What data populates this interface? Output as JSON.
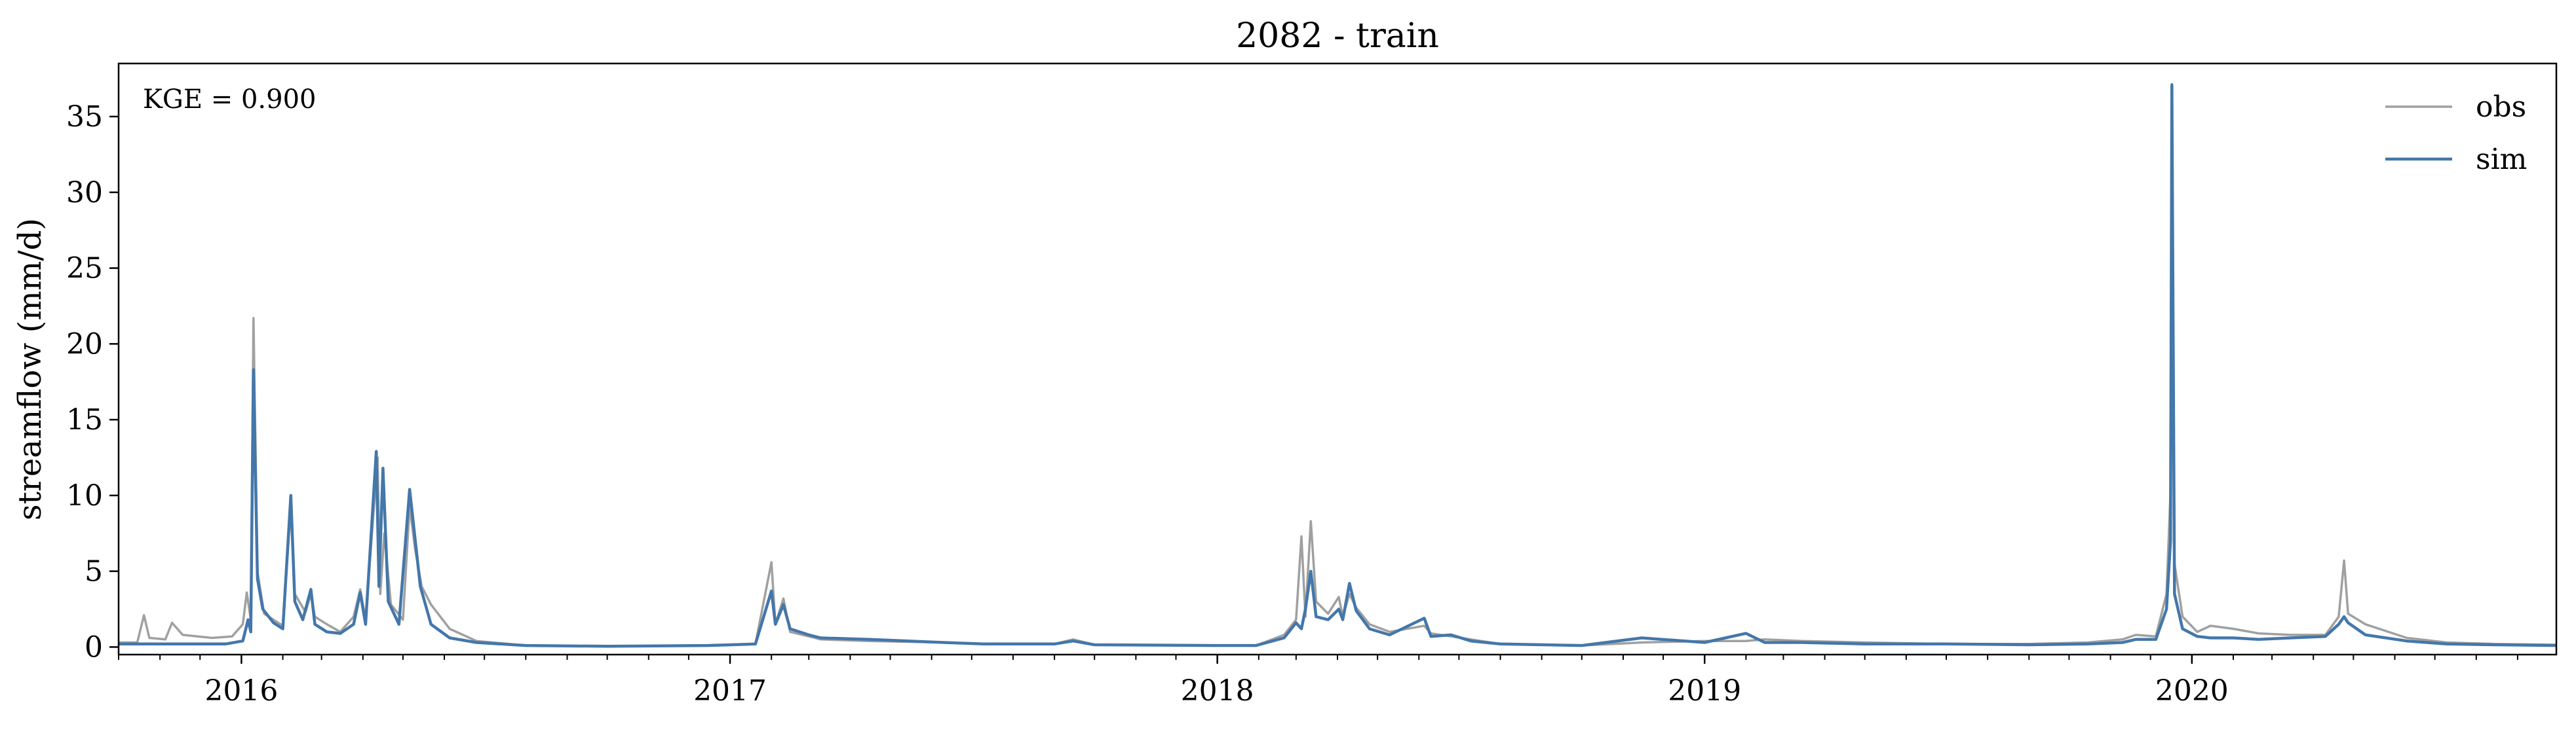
{
  "chart_data": {
    "type": "line",
    "title": "2082 - train",
    "xlabel": "",
    "ylabel": "streamflow (mm/d)",
    "annotation": "KGE = 0.900",
    "xlim": [
      "2015-10-01",
      "2020-09-30"
    ],
    "ylim": [
      -0.5,
      38.5
    ],
    "x_ticks": [
      "2016",
      "2017",
      "2018",
      "2019",
      "2020"
    ],
    "y_ticks": [
      "0",
      "5",
      "10",
      "15",
      "20",
      "25",
      "30",
      "35"
    ],
    "legend_position": "top-right",
    "grid": false,
    "colors": {
      "obs": "#a0a0a0",
      "sim": "#4477aa"
    },
    "series": [
      {
        "name": "obs",
        "color": "#a0a0a0",
        "points": [
          [
            "2015-10-01",
            0.3
          ],
          [
            "2015-10-15",
            0.3
          ],
          [
            "2015-10-20",
            2.1
          ],
          [
            "2015-10-24",
            0.6
          ],
          [
            "2015-11-05",
            0.5
          ],
          [
            "2015-11-10",
            1.6
          ],
          [
            "2015-11-18",
            0.8
          ],
          [
            "2015-12-10",
            0.6
          ],
          [
            "2015-12-25",
            0.7
          ],
          [
            "2016-01-02",
            1.5
          ],
          [
            "2016-01-05",
            3.6
          ],
          [
            "2016-01-08",
            1.8
          ],
          [
            "2016-01-10",
            21.7
          ],
          [
            "2016-01-13",
            5.0
          ],
          [
            "2016-01-18",
            2.2
          ],
          [
            "2016-02-01",
            1.4
          ],
          [
            "2016-02-07",
            9.2
          ],
          [
            "2016-02-10",
            3.5
          ],
          [
            "2016-02-18",
            2.3
          ],
          [
            "2016-02-22",
            3.5
          ],
          [
            "2016-02-25",
            2.0
          ],
          [
            "2016-03-05",
            1.5
          ],
          [
            "2016-03-15",
            1.0
          ],
          [
            "2016-03-25",
            2.0
          ],
          [
            "2016-03-30",
            3.8
          ],
          [
            "2016-04-03",
            1.8
          ],
          [
            "2016-04-12",
            12.5
          ],
          [
            "2016-04-14",
            3.5
          ],
          [
            "2016-04-17",
            7.5
          ],
          [
            "2016-04-22",
            2.8
          ],
          [
            "2016-05-01",
            1.8
          ],
          [
            "2016-05-06",
            9.3
          ],
          [
            "2016-05-10",
            6.5
          ],
          [
            "2016-05-15",
            4.0
          ],
          [
            "2016-05-22",
            2.8
          ],
          [
            "2016-06-05",
            1.2
          ],
          [
            "2016-06-25",
            0.4
          ],
          [
            "2016-08-01",
            0.1
          ],
          [
            "2016-10-01",
            0.05
          ],
          [
            "2016-12-15",
            0.1
          ],
          [
            "2017-01-20",
            0.2
          ],
          [
            "2017-02-01",
            5.6
          ],
          [
            "2017-02-04",
            1.5
          ],
          [
            "2017-02-10",
            3.2
          ],
          [
            "2017-02-15",
            1.0
          ],
          [
            "2017-03-01",
            0.7
          ],
          [
            "2017-03-10",
            0.5
          ],
          [
            "2017-04-15",
            0.4
          ],
          [
            "2017-06-10",
            0.3
          ],
          [
            "2017-07-10",
            0.2
          ],
          [
            "2017-09-01",
            0.2
          ],
          [
            "2017-09-15",
            0.5
          ],
          [
            "2017-10-01",
            0.15
          ],
          [
            "2017-12-31",
            0.1
          ],
          [
            "2018-01-30",
            0.1
          ],
          [
            "2018-02-20",
            0.8
          ],
          [
            "2018-03-01",
            1.8
          ],
          [
            "2018-03-05",
            7.3
          ],
          [
            "2018-03-08",
            2.0
          ],
          [
            "2018-03-12",
            8.3
          ],
          [
            "2018-03-16",
            3.0
          ],
          [
            "2018-03-25",
            2.2
          ],
          [
            "2018-04-02",
            3.3
          ],
          [
            "2018-04-05",
            2.0
          ],
          [
            "2018-04-10",
            3.5
          ],
          [
            "2018-04-15",
            2.6
          ],
          [
            "2018-04-25",
            1.5
          ],
          [
            "2018-05-10",
            1.0
          ],
          [
            "2018-06-05",
            1.4
          ],
          [
            "2018-06-10",
            0.9
          ],
          [
            "2018-06-25",
            0.7
          ],
          [
            "2018-07-10",
            0.5
          ],
          [
            "2018-08-01",
            0.2
          ],
          [
            "2018-10-01",
            0.1
          ],
          [
            "2018-11-15",
            0.3
          ],
          [
            "2019-01-01",
            0.4
          ],
          [
            "2019-02-01",
            0.4
          ],
          [
            "2019-02-15",
            0.5
          ],
          [
            "2019-03-15",
            0.4
          ],
          [
            "2019-05-01",
            0.3
          ],
          [
            "2019-07-01",
            0.2
          ],
          [
            "2019-09-01",
            0.2
          ],
          [
            "2019-10-15",
            0.3
          ],
          [
            "2019-11-10",
            0.5
          ],
          [
            "2019-11-20",
            0.8
          ],
          [
            "2019-12-05",
            0.7
          ],
          [
            "2019-12-13",
            3.5
          ],
          [
            "2019-12-16",
            10.2
          ],
          [
            "2019-12-17",
            37.0
          ],
          [
            "2019-12-19",
            5.5
          ],
          [
            "2019-12-25",
            2.0
          ],
          [
            "2020-01-05",
            1.0
          ],
          [
            "2020-01-15",
            1.4
          ],
          [
            "2020-02-01",
            1.2
          ],
          [
            "2020-02-20",
            0.9
          ],
          [
            "2020-03-15",
            0.8
          ],
          [
            "2020-04-10",
            0.8
          ],
          [
            "2020-04-20",
            2.0
          ],
          [
            "2020-04-24",
            5.7
          ],
          [
            "2020-04-27",
            2.2
          ],
          [
            "2020-05-10",
            1.5
          ],
          [
            "2020-06-10",
            0.6
          ],
          [
            "2020-07-10",
            0.3
          ],
          [
            "2020-08-15",
            0.2
          ],
          [
            "2020-09-30",
            0.15
          ]
        ]
      },
      {
        "name": "sim",
        "color": "#4477aa",
        "points": [
          [
            "2015-10-01",
            0.2
          ],
          [
            "2015-11-01",
            0.2
          ],
          [
            "2015-12-01",
            0.2
          ],
          [
            "2015-12-20",
            0.2
          ],
          [
            "2016-01-02",
            0.4
          ],
          [
            "2016-01-06",
            1.8
          ],
          [
            "2016-01-08",
            1.0
          ],
          [
            "2016-01-10",
            18.3
          ],
          [
            "2016-01-13",
            4.5
          ],
          [
            "2016-01-17",
            2.5
          ],
          [
            "2016-01-25",
            1.6
          ],
          [
            "2016-02-01",
            1.2
          ],
          [
            "2016-02-07",
            10.0
          ],
          [
            "2016-02-10",
            3.0
          ],
          [
            "2016-02-16",
            1.8
          ],
          [
            "2016-02-22",
            3.8
          ],
          [
            "2016-02-25",
            1.5
          ],
          [
            "2016-03-05",
            1.0
          ],
          [
            "2016-03-15",
            0.9
          ],
          [
            "2016-03-25",
            1.5
          ],
          [
            "2016-03-30",
            3.6
          ],
          [
            "2016-04-03",
            1.5
          ],
          [
            "2016-04-11",
            12.9
          ],
          [
            "2016-04-13",
            4.0
          ],
          [
            "2016-04-16",
            11.8
          ],
          [
            "2016-04-20",
            3.0
          ],
          [
            "2016-04-28",
            1.5
          ],
          [
            "2016-05-06",
            10.4
          ],
          [
            "2016-05-09",
            8.0
          ],
          [
            "2016-05-14",
            4.0
          ],
          [
            "2016-05-22",
            1.5
          ],
          [
            "2016-06-05",
            0.6
          ],
          [
            "2016-06-25",
            0.3
          ],
          [
            "2016-08-01",
            0.1
          ],
          [
            "2016-10-01",
            0.05
          ],
          [
            "2016-12-15",
            0.1
          ],
          [
            "2017-01-20",
            0.2
          ],
          [
            "2017-02-01",
            3.7
          ],
          [
            "2017-02-04",
            1.5
          ],
          [
            "2017-02-10",
            2.8
          ],
          [
            "2017-02-15",
            1.2
          ],
          [
            "2017-03-01",
            0.8
          ],
          [
            "2017-03-10",
            0.6
          ],
          [
            "2017-04-15",
            0.5
          ],
          [
            "2017-06-10",
            0.3
          ],
          [
            "2017-07-10",
            0.2
          ],
          [
            "2017-09-01",
            0.2
          ],
          [
            "2017-09-15",
            0.4
          ],
          [
            "2017-10-01",
            0.15
          ],
          [
            "2017-12-31",
            0.1
          ],
          [
            "2018-01-30",
            0.1
          ],
          [
            "2018-02-20",
            0.6
          ],
          [
            "2018-03-01",
            1.6
          ],
          [
            "2018-03-05",
            1.2
          ],
          [
            "2018-03-08",
            2.5
          ],
          [
            "2018-03-12",
            5.0
          ],
          [
            "2018-03-16",
            2.0
          ],
          [
            "2018-03-25",
            1.8
          ],
          [
            "2018-04-02",
            2.5
          ],
          [
            "2018-04-05",
            1.8
          ],
          [
            "2018-04-10",
            4.2
          ],
          [
            "2018-04-15",
            2.4
          ],
          [
            "2018-04-25",
            1.2
          ],
          [
            "2018-05-10",
            0.8
          ],
          [
            "2018-06-05",
            1.9
          ],
          [
            "2018-06-10",
            0.7
          ],
          [
            "2018-06-25",
            0.8
          ],
          [
            "2018-07-10",
            0.4
          ],
          [
            "2018-08-01",
            0.2
          ],
          [
            "2018-10-01",
            0.1
          ],
          [
            "2018-11-15",
            0.6
          ],
          [
            "2019-01-01",
            0.3
          ],
          [
            "2019-02-01",
            0.9
          ],
          [
            "2019-02-15",
            0.3
          ],
          [
            "2019-03-15",
            0.3
          ],
          [
            "2019-05-01",
            0.2
          ],
          [
            "2019-07-01",
            0.2
          ],
          [
            "2019-09-01",
            0.15
          ],
          [
            "2019-10-15",
            0.2
          ],
          [
            "2019-11-10",
            0.3
          ],
          [
            "2019-11-20",
            0.5
          ],
          [
            "2019-12-05",
            0.5
          ],
          [
            "2019-12-13",
            2.5
          ],
          [
            "2019-12-16",
            7.0
          ],
          [
            "2019-12-17",
            37.1
          ],
          [
            "2019-12-19",
            3.5
          ],
          [
            "2019-12-25",
            1.2
          ],
          [
            "2020-01-05",
            0.7
          ],
          [
            "2020-01-15",
            0.6
          ],
          [
            "2020-02-01",
            0.6
          ],
          [
            "2020-02-20",
            0.5
          ],
          [
            "2020-03-15",
            0.6
          ],
          [
            "2020-04-10",
            0.7
          ],
          [
            "2020-04-20",
            1.5
          ],
          [
            "2020-04-24",
            2.0
          ],
          [
            "2020-04-27",
            1.6
          ],
          [
            "2020-05-10",
            0.8
          ],
          [
            "2020-06-10",
            0.4
          ],
          [
            "2020-07-10",
            0.2
          ],
          [
            "2020-08-15",
            0.15
          ],
          [
            "2020-09-30",
            0.1
          ]
        ]
      }
    ]
  }
}
